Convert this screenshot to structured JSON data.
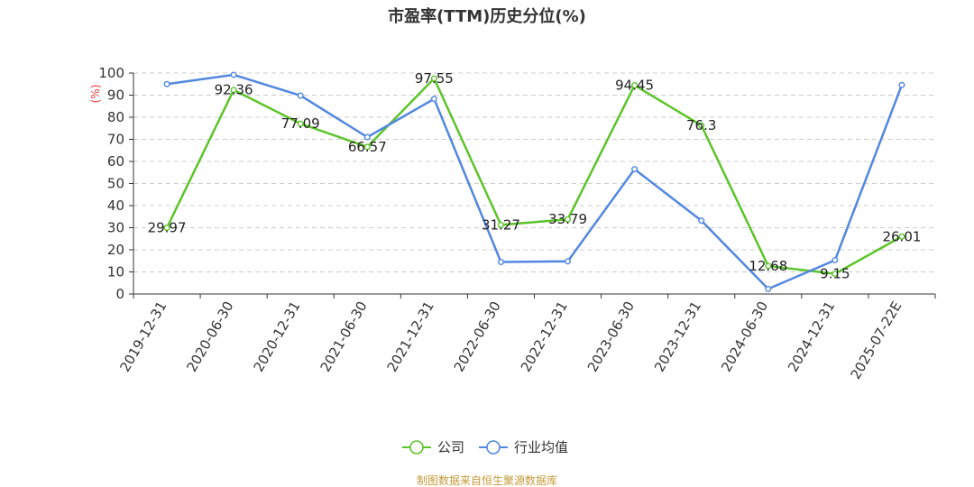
{
  "chart_data": {
    "type": "line",
    "title": "市盈率(TTM)历史分位(%)",
    "ylabel": "(%)",
    "ylim": [
      0,
      100
    ],
    "yticks": [
      0,
      10,
      20,
      30,
      40,
      50,
      60,
      70,
      80,
      90,
      100
    ],
    "grid": true,
    "legend_position": "bottom-center",
    "categories": [
      "2019-12-31",
      "2020-06-30",
      "2020-12-31",
      "2021-06-30",
      "2021-12-31",
      "2022-06-30",
      "2022-12-31",
      "2023-06-30",
      "2023-12-31",
      "2024-06-30",
      "2024-12-31",
      "2025-07-22E"
    ],
    "series": [
      {
        "name": "公司",
        "color": "#5cc42a",
        "values": [
          29.97,
          92.36,
          77.09,
          66.57,
          97.55,
          31.27,
          33.79,
          94.45,
          76.3,
          12.68,
          9.15,
          26.01
        ],
        "labels": [
          "29.97",
          "92.36",
          "77.09",
          "66.57",
          "97.55",
          "31.27",
          "33.79",
          "94.45",
          "76.3",
          "12.68",
          "9.15",
          "26.01"
        ]
      },
      {
        "name": "行业均值",
        "color": "#5287e0",
        "values": [
          95,
          99.2,
          89.8,
          71,
          88.3,
          14.5,
          14.8,
          56.5,
          33.2,
          2.3,
          15.3,
          94.6
        ]
      }
    ]
  },
  "source": "制图数据来自恒生聚源数据库",
  "colors": {
    "axis": "#333333",
    "grid": "#cccccc",
    "unit": "#e83a3a",
    "source": "#c49a3a"
  }
}
